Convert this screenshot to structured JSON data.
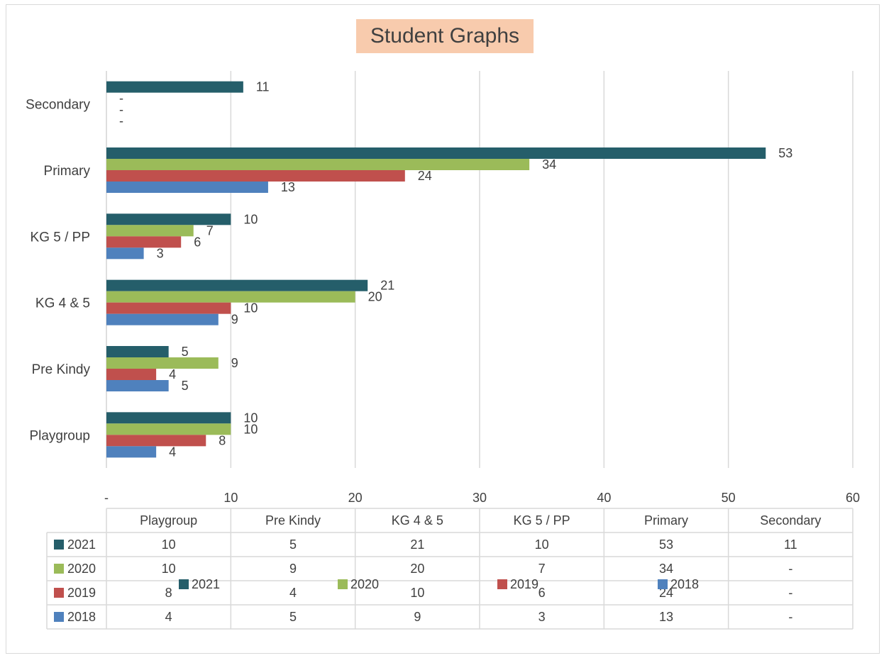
{
  "chart_data": {
    "type": "bar",
    "orientation": "horizontal",
    "title": "Student Graphs",
    "categories": [
      "Playgroup",
      "Pre Kindy",
      "KG 4 & 5",
      "KG 5 / PP",
      "Primary",
      "Secondary"
    ],
    "series": [
      {
        "name": "2021",
        "color": "#255e6a",
        "values": [
          10,
          5,
          21,
          10,
          53,
          11
        ],
        "labels": [
          "10",
          "5",
          "21",
          "10",
          "53",
          "11"
        ]
      },
      {
        "name": "2020",
        "color": "#9bbb59",
        "values": [
          10,
          9,
          20,
          7,
          34,
          null
        ],
        "labels": [
          "10",
          "9",
          "20",
          "7",
          "34",
          "-"
        ]
      },
      {
        "name": "2019",
        "color": "#c0504d",
        "values": [
          8,
          4,
          10,
          6,
          24,
          null
        ],
        "labels": [
          "8",
          "4",
          "10",
          "6",
          "24",
          "-"
        ]
      },
      {
        "name": "2018",
        "color": "#4f81bd",
        "values": [
          4,
          5,
          9,
          3,
          13,
          null
        ],
        "labels": [
          "4",
          "5",
          "9",
          "3",
          "13",
          "-"
        ]
      }
    ],
    "xlim": [
      0,
      60
    ],
    "xticks": [
      "-",
      "10",
      "20",
      "30",
      "40",
      "50",
      "60"
    ],
    "grid": true,
    "data_table": true,
    "legend_position": "bottom"
  }
}
